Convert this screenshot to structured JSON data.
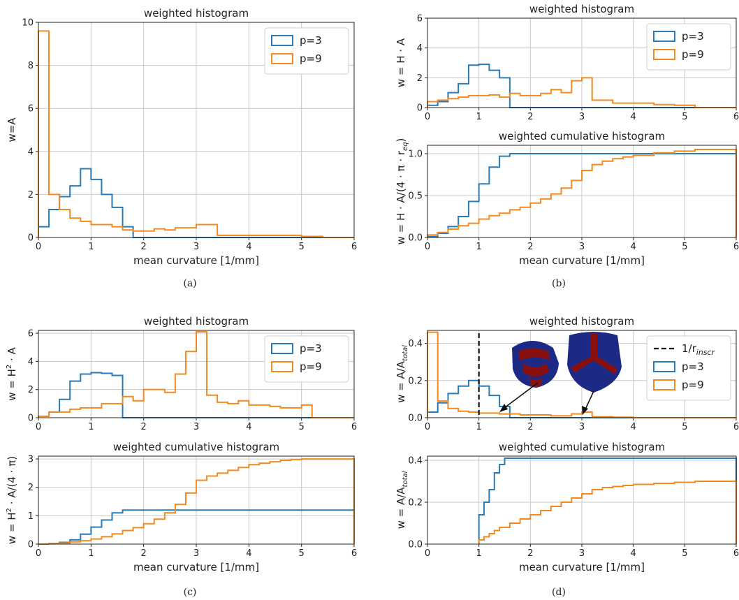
{
  "colors": {
    "p3": "#2a7ab5",
    "p9": "#f28a1f",
    "grid": "#c8c8c8",
    "inscr": "#111111",
    "shape_blue": "#1c2a86",
    "shape_red": "#8a1010"
  },
  "captions": {
    "a": "(a)",
    "b": "(b)",
    "c": "(c)",
    "d": "(d)"
  },
  "chart_data": [
    {
      "id": "a-hist",
      "type": "line",
      "step": true,
      "title": "weighted histogram",
      "xlabel": "mean curvature [1/mm]",
      "ylabel": "w=A",
      "xlim": [
        0,
        6
      ],
      "ylim": [
        0,
        10
      ],
      "xticks": [
        "0",
        "1",
        "2",
        "3",
        "4",
        "5",
        "6"
      ],
      "yticks": [
        "0",
        "2",
        "4",
        "6",
        "8",
        "10"
      ],
      "grid": true,
      "legend": "top-right",
      "legend_entries": [
        "p=3",
        "p=9"
      ],
      "series": [
        {
          "name": "p=3",
          "color": "#2a7ab5",
          "x": [
            0,
            0.2,
            0.4,
            0.6,
            0.8,
            1.0,
            1.2,
            1.4,
            1.6,
            1.8,
            6
          ],
          "y": [
            0.5,
            1.3,
            1.9,
            2.4,
            3.2,
            2.7,
            2.0,
            1.4,
            0.5,
            0,
            0
          ]
        },
        {
          "name": "p=9",
          "color": "#f28a1f",
          "x": [
            0,
            0.2,
            0.4,
            0.6,
            0.8,
            1.0,
            1.4,
            1.6,
            1.8,
            2.2,
            2.4,
            2.6,
            3.0,
            3.4,
            4.0,
            5.0,
            5.4,
            6
          ],
          "y": [
            9.6,
            2.0,
            1.3,
            0.9,
            0.75,
            0.6,
            0.5,
            0.35,
            0.3,
            0.4,
            0.35,
            0.45,
            0.6,
            0.1,
            0.1,
            0.05,
            0,
            0
          ]
        }
      ]
    },
    {
      "id": "b-hist",
      "type": "line",
      "step": true,
      "title": "weighted histogram",
      "xlabel": "",
      "ylabel": "w = H · A",
      "xlim": [
        0,
        6
      ],
      "ylim": [
        0,
        6
      ],
      "xticks": [
        "0",
        "1",
        "2",
        "3",
        "4",
        "5",
        "6"
      ],
      "yticks": [
        "0",
        "2",
        "4",
        "6"
      ],
      "grid": true,
      "legend": "top-right",
      "legend_entries": [
        "p=3",
        "p=9"
      ],
      "series": [
        {
          "name": "p=3",
          "color": "#2a7ab5",
          "x": [
            0,
            0.2,
            0.4,
            0.6,
            0.8,
            1.0,
            1.2,
            1.4,
            1.6,
            6
          ],
          "y": [
            0.15,
            0.4,
            1.0,
            1.6,
            2.85,
            2.9,
            2.5,
            2.0,
            0,
            0
          ]
        },
        {
          "name": "p=9",
          "color": "#f28a1f",
          "x": [
            0,
            0.2,
            0.4,
            0.6,
            0.8,
            1.2,
            1.4,
            1.6,
            1.8,
            2.2,
            2.4,
            2.6,
            2.8,
            3.0,
            3.2,
            3.6,
            4.0,
            4.4,
            4.8,
            5.2,
            6
          ],
          "y": [
            0.4,
            0.5,
            0.6,
            0.7,
            0.8,
            0.85,
            0.7,
            0.95,
            0.8,
            0.95,
            1.2,
            1.0,
            1.8,
            2.0,
            0.5,
            0.3,
            0.3,
            0.2,
            0.15,
            0,
            0
          ]
        }
      ]
    },
    {
      "id": "b-cum",
      "type": "line",
      "step": true,
      "title": "weighted cumulative histogram",
      "xlabel": "mean curvature [1/mm]",
      "ylabel": "w = H · A/(4 · π · r",
      "ylabel_sub": "eq",
      "ylabel_end": ")",
      "xlim": [
        0,
        6
      ],
      "ylim": [
        0,
        1.1
      ],
      "xticks": [
        "0",
        "1",
        "2",
        "3",
        "4",
        "5",
        "6"
      ],
      "yticks": [
        "0.0",
        "0.5",
        "1.0"
      ],
      "grid": true,
      "series": [
        {
          "name": "p=3",
          "color": "#2a7ab5",
          "x": [
            0,
            0.2,
            0.4,
            0.6,
            0.8,
            1.0,
            1.2,
            1.4,
            1.6,
            6
          ],
          "y": [
            0.01,
            0.05,
            0.13,
            0.25,
            0.43,
            0.64,
            0.84,
            0.97,
            1.0,
            1.0
          ]
        },
        {
          "name": "p=9",
          "color": "#f28a1f",
          "x": [
            0,
            0.2,
            0.4,
            0.6,
            0.8,
            1.0,
            1.2,
            1.4,
            1.6,
            1.8,
            2.0,
            2.2,
            2.4,
            2.6,
            2.8,
            3.0,
            3.2,
            3.4,
            3.6,
            3.8,
            4.0,
            4.4,
            4.8,
            5.2,
            6
          ],
          "y": [
            0.03,
            0.06,
            0.1,
            0.14,
            0.17,
            0.22,
            0.26,
            0.29,
            0.33,
            0.36,
            0.41,
            0.46,
            0.52,
            0.59,
            0.68,
            0.8,
            0.87,
            0.91,
            0.94,
            0.96,
            0.98,
            1.01,
            1.03,
            1.05,
            1.05
          ]
        }
      ]
    },
    {
      "id": "c-hist",
      "type": "line",
      "step": true,
      "title": "weighted  histogram",
      "xlabel": "",
      "ylabel": "w = H",
      "ylabel_sup": "2",
      "ylabel_end": " · A",
      "xlim": [
        0,
        6
      ],
      "ylim": [
        0,
        6.2
      ],
      "xticks": [
        "0",
        "1",
        "2",
        "3",
        "4",
        "5",
        "6"
      ],
      "yticks": [
        "0",
        "2",
        "4",
        "6"
      ],
      "grid": true,
      "legend": "top-right",
      "legend_entries": [
        "p=3",
        "p=9"
      ],
      "series": [
        {
          "name": "p=3",
          "color": "#2a7ab5",
          "x": [
            0,
            0.2,
            0.4,
            0.6,
            0.8,
            1.0,
            1.2,
            1.4,
            1.6,
            6
          ],
          "y": [
            0.1,
            0.4,
            1.3,
            2.6,
            3.1,
            3.2,
            3.15,
            3.0,
            0,
            0
          ]
        },
        {
          "name": "p=9",
          "color": "#f28a1f",
          "x": [
            0,
            0.2,
            0.6,
            0.8,
            1.2,
            1.6,
            1.8,
            2.0,
            2.4,
            2.6,
            2.8,
            3.0,
            3.2,
            3.4,
            3.6,
            3.8,
            4.0,
            4.4,
            4.6,
            5.0,
            5.2,
            6
          ],
          "y": [
            0.1,
            0.4,
            0.6,
            0.7,
            1.0,
            1.5,
            1.2,
            2.0,
            1.8,
            3.1,
            4.7,
            6.1,
            1.6,
            1.1,
            1.0,
            1.2,
            0.9,
            0.8,
            0.7,
            0.9,
            0,
            0
          ]
        }
      ]
    },
    {
      "id": "c-cum",
      "type": "line",
      "step": true,
      "title": "weighted cumulative histogram",
      "xlabel": "mean curvature [1/mm]",
      "ylabel": "w = H",
      "ylabel_sup": "2",
      "ylabel_end": " · A/(4 · π)",
      "xlim": [
        0,
        6
      ],
      "ylim": [
        0,
        3.1
      ],
      "xticks": [
        "0",
        "1",
        "2",
        "3",
        "4",
        "5",
        "6"
      ],
      "yticks": [
        "0",
        "1",
        "2",
        "3"
      ],
      "grid": true,
      "series": [
        {
          "name": "p=3",
          "color": "#2a7ab5",
          "x": [
            0,
            0.2,
            0.4,
            0.6,
            0.8,
            1.0,
            1.2,
            1.4,
            1.6,
            6
          ],
          "y": [
            0.0,
            0.02,
            0.06,
            0.15,
            0.35,
            0.6,
            0.85,
            1.1,
            1.2,
            1.2
          ]
        },
        {
          "name": "p=9",
          "color": "#f28a1f",
          "x": [
            0,
            0.2,
            0.4,
            0.6,
            0.8,
            1.0,
            1.2,
            1.4,
            1.6,
            1.8,
            2.0,
            2.2,
            2.4,
            2.6,
            2.8,
            3.0,
            3.2,
            3.4,
            3.6,
            3.8,
            4.0,
            4.2,
            4.4,
            4.6,
            4.8,
            5.0,
            6
          ],
          "y": [
            0.0,
            0.02,
            0.04,
            0.08,
            0.12,
            0.18,
            0.26,
            0.36,
            0.48,
            0.58,
            0.72,
            0.88,
            1.1,
            1.4,
            1.8,
            2.25,
            2.4,
            2.5,
            2.6,
            2.7,
            2.8,
            2.85,
            2.9,
            2.95,
            2.98,
            3.0,
            3.0
          ]
        }
      ]
    },
    {
      "id": "d-hist",
      "type": "line",
      "step": true,
      "title": "weighted  histogram",
      "xlabel": "",
      "ylabel": "w = A/A",
      "ylabel_sub": "total",
      "xlim": [
        0,
        6
      ],
      "ylim": [
        0,
        0.47
      ],
      "xticks": [
        "0",
        "1",
        "2",
        "3",
        "4",
        "5",
        "6"
      ],
      "yticks": [
        "0.0",
        "0.2",
        "0.4"
      ],
      "grid": true,
      "legend": "top-right",
      "legend_entries": [
        "1/r",
        "p=3",
        "p=9"
      ],
      "legend_inscr_sub": "inscr",
      "vline_x": 1.0,
      "series": [
        {
          "name": "p=3",
          "color": "#2a7ab5",
          "x": [
            0,
            0.2,
            0.4,
            0.6,
            0.8,
            1.0,
            1.2,
            1.4,
            1.6,
            6
          ],
          "y": [
            0.03,
            0.08,
            0.13,
            0.17,
            0.2,
            0.17,
            0.12,
            0.06,
            0,
            0
          ]
        },
        {
          "name": "p=9",
          "color": "#f28a1f",
          "x": [
            0,
            0.2,
            0.4,
            0.6,
            0.8,
            1.0,
            1.4,
            1.8,
            2.4,
            2.8,
            3.0,
            3.2,
            3.6,
            4.0,
            6
          ],
          "y": [
            0.46,
            0.09,
            0.05,
            0.035,
            0.03,
            0.025,
            0.02,
            0.015,
            0.01,
            0.02,
            0.03,
            0.005,
            0.003,
            0,
            0
          ]
        }
      ]
    },
    {
      "id": "d-cum",
      "type": "line",
      "step": true,
      "title": "weighted cumulative histogram",
      "xlabel": "mean curvature [1/mm]",
      "ylabel": "w = A/A",
      "ylabel_sub": "total",
      "xlim": [
        0,
        6
      ],
      "ylim": [
        0,
        0.42
      ],
      "xticks": [
        "0",
        "1",
        "2",
        "3",
        "4",
        "5",
        "6"
      ],
      "yticks": [
        "0.0",
        "0.2",
        "0.4"
      ],
      "grid": true,
      "series": [
        {
          "name": "p=3",
          "color": "#2a7ab5",
          "x": [
            1.0,
            1.1,
            1.2,
            1.3,
            1.4,
            1.5,
            6
          ],
          "y": [
            0.14,
            0.2,
            0.26,
            0.34,
            0.38,
            0.41,
            0.41
          ]
        },
        {
          "name": "p=9",
          "color": "#f28a1f",
          "x": [
            1.0,
            1.1,
            1.2,
            1.3,
            1.4,
            1.6,
            1.8,
            2.0,
            2.2,
            2.4,
            2.6,
            2.8,
            3.0,
            3.2,
            3.4,
            3.6,
            3.8,
            4.0,
            4.4,
            4.8,
            5.2,
            6
          ],
          "y": [
            0.02,
            0.035,
            0.05,
            0.065,
            0.08,
            0.1,
            0.12,
            0.14,
            0.16,
            0.18,
            0.2,
            0.22,
            0.24,
            0.26,
            0.27,
            0.275,
            0.28,
            0.285,
            0.29,
            0.295,
            0.3,
            0.3
          ]
        }
      ]
    }
  ]
}
